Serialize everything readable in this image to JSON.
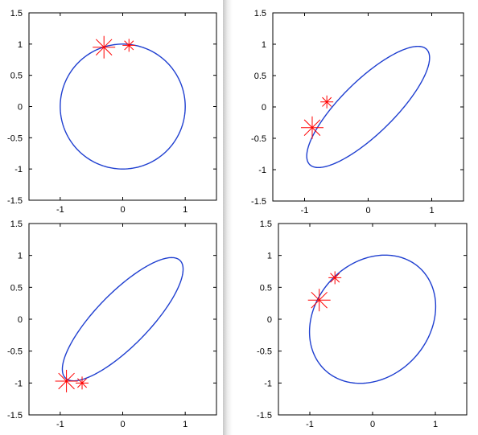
{
  "chart_data": [
    {
      "type": "line",
      "xlim": [
        -1.5,
        1.5
      ],
      "ylim": [
        -1.5,
        1.5
      ],
      "xticks": [
        -1,
        0,
        1
      ],
      "yticks": [
        -1.5,
        -1,
        -0.5,
        0,
        0.5,
        1,
        1.5
      ],
      "xtick_labels": [
        "-1",
        "0",
        "1"
      ],
      "ytick_labels": [
        "-1.5",
        "-1",
        "-0.5",
        "0",
        "0.5",
        "1",
        "1.5"
      ],
      "curve": {
        "shape": "ellipse",
        "center": [
          0,
          0
        ],
        "a": 1.0,
        "b": 1.0,
        "rotation_deg": 0,
        "color": "#1f3fd0"
      },
      "markers": [
        {
          "x": -0.3,
          "y": 0.95,
          "size": "large",
          "color": "#ff0000"
        },
        {
          "x": 0.1,
          "y": 0.98,
          "size": "small",
          "color": "#ff0000"
        }
      ]
    },
    {
      "type": "line",
      "xlim": [
        -1.5,
        1.5
      ],
      "ylim": [
        -1.5,
        1.5
      ],
      "xticks": [
        -1,
        0,
        1
      ],
      "yticks": [
        -1.5,
        -1,
        -0.5,
        0,
        0.5,
        1,
        1.5
      ],
      "xtick_labels": [
        "-1",
        "0",
        "1"
      ],
      "ytick_labels": [
        "-1.5",
        "-1",
        "-0.5",
        "0",
        "0.5",
        "1",
        "1.5"
      ],
      "curve": {
        "shape": "ellipse",
        "center": [
          0,
          0
        ],
        "a": 1.3,
        "b": 0.42,
        "rotation_deg": 45,
        "color": "#1f3fd0"
      },
      "markers": [
        {
          "x": -0.88,
          "y": -0.33,
          "size": "large",
          "color": "#ff0000"
        },
        {
          "x": -0.65,
          "y": 0.08,
          "size": "small",
          "color": "#ff0000"
        }
      ]
    },
    {
      "type": "line",
      "xlim": [
        -1.5,
        1.5
      ],
      "ylim": [
        -1.5,
        1.5
      ],
      "xticks": [
        -1,
        0,
        1
      ],
      "yticks": [
        -1.5,
        -1,
        -0.5,
        0,
        0.5,
        1,
        1.5
      ],
      "xtick_labels": [
        "-1",
        "0",
        "1"
      ],
      "ytick_labels": [
        "-1.5",
        "-1",
        "-0.5",
        "0",
        "0.5",
        "1",
        "1.5"
      ],
      "curve": {
        "shape": "ellipse",
        "center": [
          0,
          0
        ],
        "a": 1.3,
        "b": 0.42,
        "rotation_deg": 45,
        "color": "#1f3fd0"
      },
      "markers": [
        {
          "x": -0.9,
          "y": -0.97,
          "size": "large",
          "color": "#ff0000"
        },
        {
          "x": -0.65,
          "y": -1.0,
          "size": "small",
          "color": "#ff0000"
        }
      ]
    },
    {
      "type": "line",
      "xlim": [
        -1.5,
        1.5
      ],
      "ylim": [
        -1.5,
        1.5
      ],
      "xticks": [
        -1,
        0,
        1
      ],
      "yticks": [
        -1.5,
        -1,
        -0.5,
        0,
        0.5,
        1,
        1.5
      ],
      "xtick_labels": [
        "-1",
        "0",
        "1"
      ],
      "ytick_labels": [
        "-1.5",
        "-1",
        "-0.5",
        "0",
        "0.5",
        "1",
        "1.5"
      ],
      "curve": {
        "shape": "ellipse",
        "center": [
          0,
          0
        ],
        "a": 1.1,
        "b": 0.9,
        "rotation_deg": 45,
        "color": "#1f3fd0"
      },
      "markers": [
        {
          "x": -0.85,
          "y": 0.3,
          "size": "large",
          "color": "#ff0000"
        },
        {
          "x": -0.6,
          "y": 0.65,
          "size": "small",
          "color": "#ff0000"
        }
      ]
    }
  ]
}
